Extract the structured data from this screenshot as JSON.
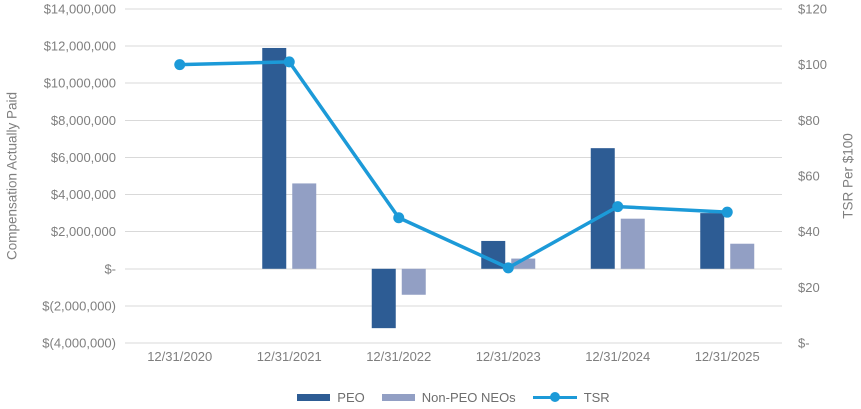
{
  "chart_data": {
    "type": "bar+line",
    "categories": [
      "12/31/2020",
      "12/31/2021",
      "12/31/2022",
      "12/31/2023",
      "12/31/2024",
      "12/31/2025"
    ],
    "series": [
      {
        "name": "PEO",
        "type": "bar",
        "axis": "left",
        "color": "#2D5C94",
        "values": [
          null,
          11900000,
          -3200000,
          1500000,
          6500000,
          3000000
        ]
      },
      {
        "name": "Non-PEO NEOs",
        "type": "bar",
        "axis": "left",
        "color": "#929FC4",
        "values": [
          null,
          4600000,
          -1400000,
          550000,
          2700000,
          1350000
        ]
      },
      {
        "name": "TSR",
        "type": "line",
        "axis": "right",
        "color": "#1C9AD8",
        "values": [
          100,
          101,
          45,
          27,
          49,
          47
        ]
      }
    ],
    "left_axis": {
      "label": "Compensation Actually Paid",
      "min": -4000000,
      "max": 14000000,
      "step": 2000000,
      "tick_labels": [
        "$14,000,000",
        "$12,000,000",
        "$10,000,000",
        "$8,000,000",
        "$6,000,000",
        "$4,000,000",
        "$2,000,000",
        "$-",
        "$(2,000,000)",
        "$(4,000,000)"
      ]
    },
    "right_axis": {
      "label": "TSR Per $100",
      "min": 0,
      "max": 120,
      "step": 20,
      "tick_labels": [
        "$120",
        "$100",
        "$80",
        "$60",
        "$40",
        "$20",
        "$-"
      ]
    },
    "grid": true,
    "legend_position": "bottom",
    "colors": {
      "gridline": "#D9D9D9",
      "axis_text": "#7F7F7F"
    }
  }
}
